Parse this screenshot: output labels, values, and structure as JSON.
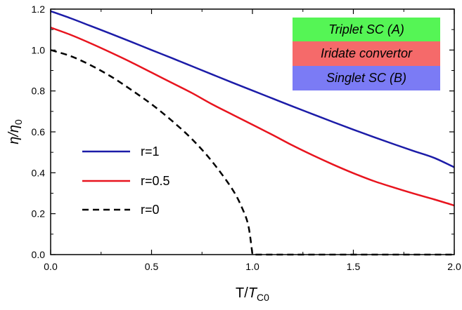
{
  "chart_data": {
    "type": "line",
    "xlabel": "T/T_C0",
    "xlabel_main": "T/",
    "xlabel_T": "T",
    "xlabel_sub": "C0",
    "ylabel": "η/η_0",
    "ylabel_main": "η/η",
    "ylabel_sub": "0",
    "xlim": [
      0,
      2.0
    ],
    "ylim": [
      0,
      1.2
    ],
    "xticks": [
      "0.0",
      "0.5",
      "1.0",
      "1.5",
      "2.0"
    ],
    "yticks": [
      "0.0",
      "0.2",
      "0.4",
      "0.6",
      "0.8",
      "1.0",
      "1.2"
    ],
    "legend_placement": "middle-left",
    "series": [
      {
        "name": "r=1",
        "color": "#1c1ca8",
        "dash": "solid",
        "x": [
          0,
          0.1,
          0.2,
          0.3,
          0.4,
          0.5,
          0.6,
          0.7,
          0.8,
          0.9,
          1.0,
          1.1,
          1.2,
          1.3,
          1.4,
          1.5,
          1.6,
          1.7,
          1.8,
          1.9,
          2.0
        ],
        "y": [
          1.19,
          1.155,
          1.117,
          1.079,
          1.04,
          1.0,
          0.961,
          0.921,
          0.881,
          0.841,
          0.802,
          0.763,
          0.724,
          0.686,
          0.648,
          0.611,
          0.575,
          0.54,
          0.506,
          0.473,
          0.427
        ]
      },
      {
        "name": "r=0.5",
        "color": "#e8141e",
        "dash": "solid",
        "x": [
          0,
          0.1,
          0.2,
          0.3,
          0.4,
          0.5,
          0.6,
          0.7,
          0.8,
          0.9,
          1.0,
          1.1,
          1.2,
          1.3,
          1.4,
          1.5,
          1.6,
          1.7,
          1.8,
          1.9,
          2.0
        ],
        "y": [
          1.11,
          1.074,
          1.032,
          0.987,
          0.94,
          0.89,
          0.84,
          0.79,
          0.735,
          0.685,
          0.635,
          0.585,
          0.533,
          0.485,
          0.44,
          0.398,
          0.36,
          0.328,
          0.298,
          0.27,
          0.24
        ]
      },
      {
        "name": "r=0",
        "color": "#000000",
        "dash": "dashed",
        "x": [
          0,
          0.1,
          0.2,
          0.3,
          0.4,
          0.5,
          0.6,
          0.7,
          0.8,
          0.9,
          0.95,
          0.98,
          1.0,
          1.5,
          2.0
        ],
        "y": [
          1.0,
          0.97,
          0.925,
          0.87,
          0.805,
          0.735,
          0.655,
          0.565,
          0.455,
          0.32,
          0.225,
          0.14,
          0.0,
          0.0,
          0.0
        ]
      }
    ]
  },
  "inset": {
    "layers": [
      {
        "label_plain": "Triplet SC (",
        "label_ital": "A",
        "label_close": ")",
        "color": "#55f555"
      },
      {
        "label_plain": "Iridate convertor",
        "label_ital": "",
        "label_close": "",
        "color": "#f56a6a"
      },
      {
        "label_plain": "Singlet SC (",
        "label_ital": "B",
        "label_close": ")",
        "color": "#7b7bf5"
      }
    ]
  }
}
